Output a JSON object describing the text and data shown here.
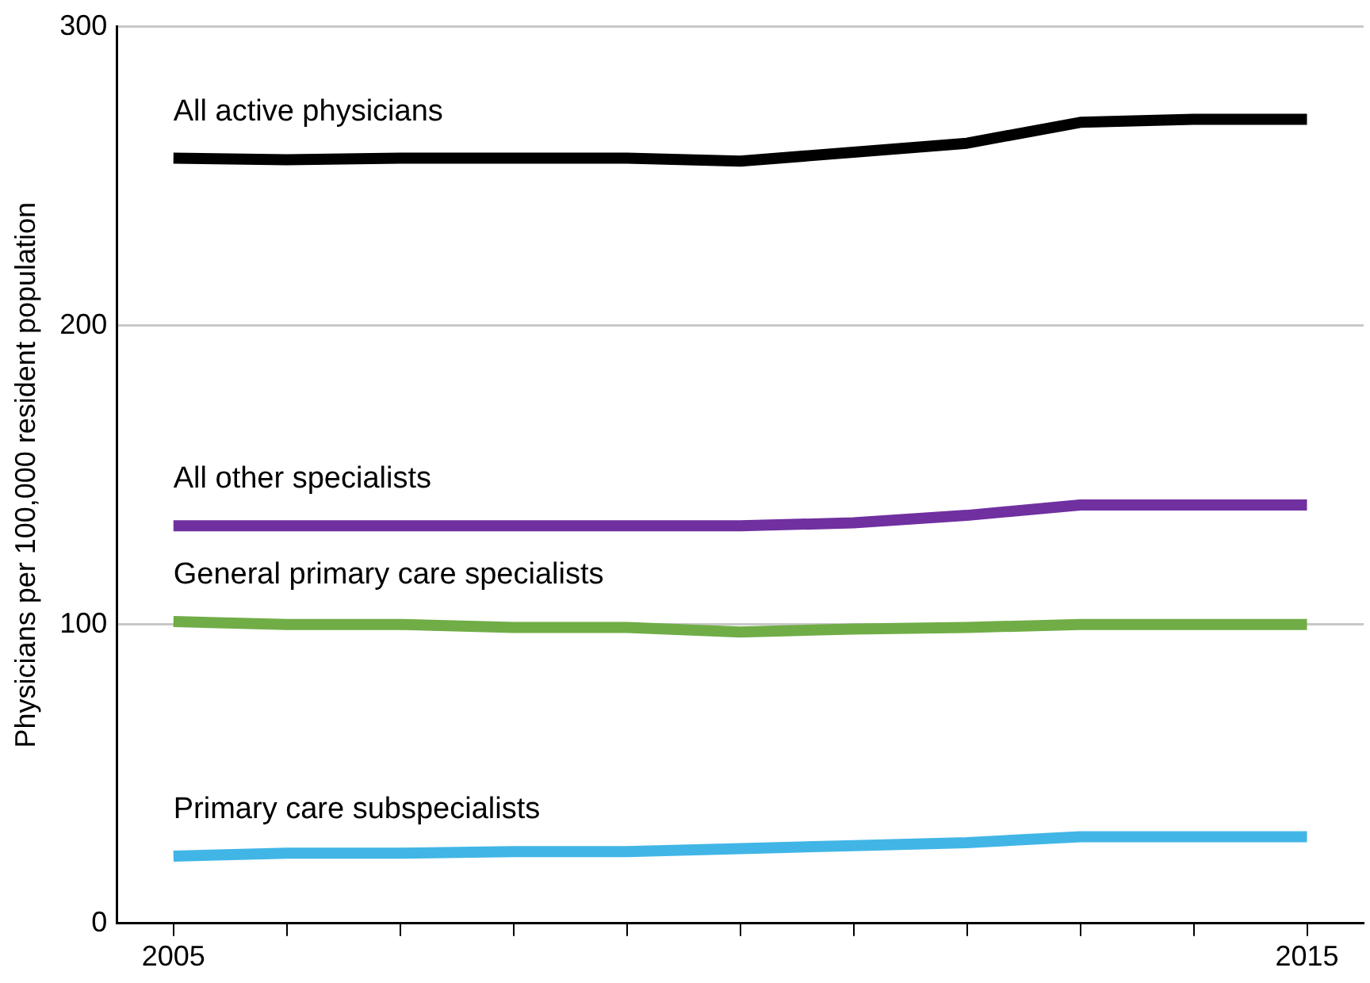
{
  "chart_data": {
    "type": "line",
    "ylabel": "Physicians per 100,000 resident population",
    "x": [
      2005,
      2006,
      2007,
      2008,
      2009,
      2010,
      2011,
      2012,
      2013,
      2014,
      2015
    ],
    "series": [
      {
        "name": "All active physicians",
        "color": "#000000",
        "values": [
          256,
          255.5,
          256,
          256,
          256,
          255,
          258,
          261,
          268,
          269,
          269
        ]
      },
      {
        "name": "All other specialists",
        "color": "#7030a0",
        "values": [
          133,
          133,
          133,
          133,
          133,
          133,
          134,
          136.5,
          140,
          140,
          140
        ]
      },
      {
        "name": "General primary care specialists",
        "color": "#70ad47",
        "values": [
          101,
          100,
          100,
          99,
          99,
          97.5,
          98.5,
          99,
          100,
          100,
          100
        ]
      },
      {
        "name": "Primary care subspecialists",
        "color": "#41b6e6",
        "values": [
          22.5,
          23.5,
          23.5,
          24,
          24,
          25,
          26,
          27,
          29,
          29,
          29
        ]
      }
    ],
    "xlim": [
      2004.5,
      2015.5
    ],
    "xticks": [
      2005,
      {
        "value": 2006,
        "label": null
      },
      {
        "value": 2007,
        "label": null
      },
      {
        "value": 2008,
        "label": null
      },
      {
        "value": 2009,
        "label": null
      },
      {
        "value": 2010,
        "label": null
      },
      {
        "value": 2011,
        "label": null
      },
      {
        "value": 2012,
        "label": null
      },
      {
        "value": 2013,
        "label": null
      },
      {
        "value": 2014,
        "label": null
      },
      2015
    ],
    "ylim": [
      0,
      300
    ],
    "yticks": [
      0,
      100,
      200,
      300
    ],
    "grid": "y",
    "legend": false,
    "marker": "none",
    "line_style": "solid"
  }
}
